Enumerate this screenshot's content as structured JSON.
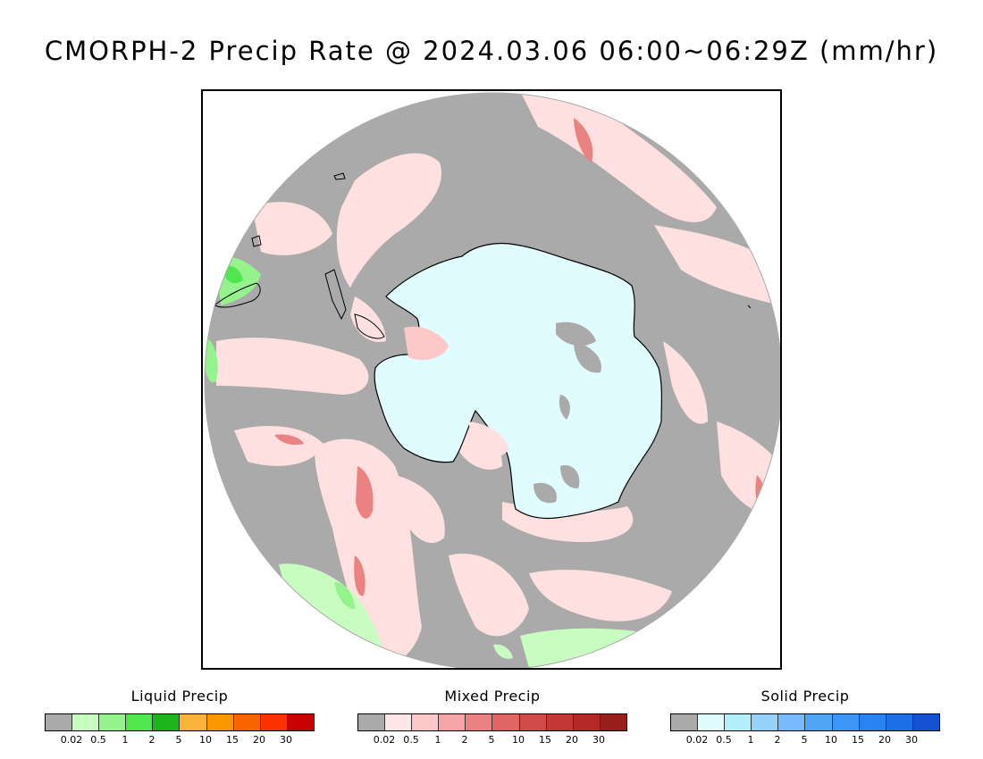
{
  "title": "CMORPH-2 Precip Rate @ 2024.03.06 06:00~06:29Z (mm/hr)",
  "map": {
    "projection": "south-polar-stereographic",
    "ocean_no_precip_color": "#aaaaaa",
    "antarctica_snow_color": "#e0fcfe",
    "coastline_color": "#000000"
  },
  "legends": [
    {
      "title": "Liquid Precip",
      "colors": [
        "#aaaaaa",
        "#c8fcc0",
        "#96f28c",
        "#50e650",
        "#1eb41e",
        "#fab43c",
        "#fa9600",
        "#fa6400",
        "#fa3200",
        "#c80000"
      ],
      "ticks": [
        "0.02",
        "0.5",
        "1",
        "2",
        "5",
        "10",
        "15",
        "20",
        "30"
      ]
    },
    {
      "title": "Mixed Precip",
      "colors": [
        "#aaaaaa",
        "#ffe6e6",
        "#fcc8c8",
        "#f5a5a5",
        "#eb8282",
        "#e16464",
        "#d24b4b",
        "#c33737",
        "#b42828",
        "#9b1e1e"
      ],
      "ticks": [
        "0.02",
        "0.5",
        "1",
        "2",
        "5",
        "10",
        "15",
        "20",
        "30"
      ]
    },
    {
      "title": "Solid Precip",
      "colors": [
        "#aaaaaa",
        "#e0fcfe",
        "#b4f0fa",
        "#96d2fa",
        "#78b9fa",
        "#50a5f5",
        "#3c96f5",
        "#2882f0",
        "#1e6ee6",
        "#1450d2"
      ],
      "ticks": [
        "0.02",
        "0.5",
        "1",
        "2",
        "5",
        "10",
        "15",
        "20",
        "30"
      ]
    }
  ]
}
